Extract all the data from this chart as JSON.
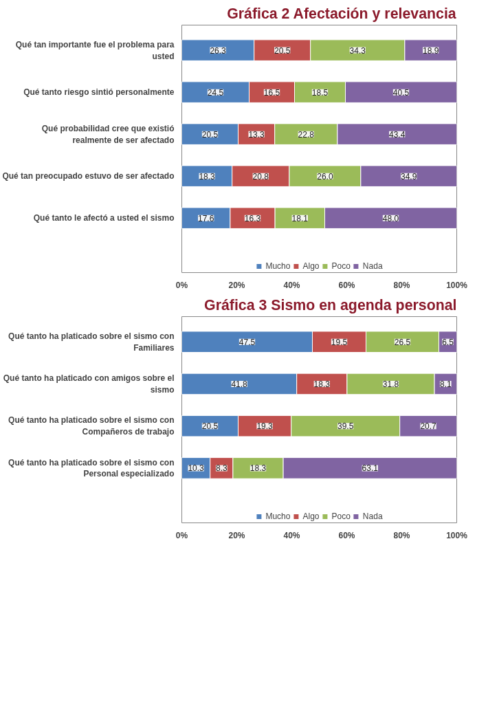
{
  "chart_data": [
    {
      "type": "bar",
      "orientation": "horizontal",
      "stacked": true,
      "title": "Gráfica 2 Afectación y relevancia",
      "categories": [
        "Qué tan importante fue el problema para usted",
        "Qué tanto riesgo sintió personalmente",
        "Qué probabilidad cree que existió realmente de ser afectado",
        "Qué tan preocupado estuvo de ser afectado",
        "Qué tanto le afectó a usted el sismo"
      ],
      "series": [
        {
          "name": "Mucho",
          "color": "#4f81bd",
          "values": [
            26.3,
            24.5,
            20.5,
            18.3,
            17.6
          ],
          "value_labels": [
            "26.3",
            "24.5",
            "20.5",
            "18.3",
            "17.6"
          ]
        },
        {
          "name": "Algo",
          "color": "#c0504d",
          "values": [
            20.5,
            16.5,
            13.3,
            20.8,
            16.3
          ],
          "value_labels": [
            "20.5",
            "16.5",
            "13.3",
            "20.8",
            "16.3"
          ]
        },
        {
          "name": "Poco",
          "color": "#9bbb59",
          "values": [
            34.3,
            18.5,
            22.8,
            26.0,
            18.1
          ],
          "value_labels": [
            "34.3",
            "18.5",
            "22.8",
            "26.0",
            "18.1"
          ]
        },
        {
          "name": "Nada",
          "color": "#8064a2",
          "values": [
            18.9,
            40.5,
            43.4,
            34.9,
            48.0
          ],
          "value_labels": [
            "18.9",
            "40.5",
            "43.4",
            "34.9",
            "48.0"
          ]
        }
      ],
      "xlim": [
        0,
        100
      ],
      "xticks": [
        {
          "value": 0,
          "label": "0%"
        },
        {
          "value": 20,
          "label": "20%"
        },
        {
          "value": 40,
          "label": "40%"
        },
        {
          "value": 60,
          "label": "60%"
        },
        {
          "value": 80,
          "label": "80%"
        },
        {
          "value": 100,
          "label": "100%"
        }
      ],
      "legend": "bottom"
    },
    {
      "type": "bar",
      "orientation": "horizontal",
      "stacked": true,
      "title": "Gráfica 3 Sismo en agenda personal",
      "categories": [
        "Qué tanto ha platicado sobre el sismo con Familiares",
        "Qué tanto ha platicado con amigos sobre el sismo",
        "Qué tanto ha platicado sobre el sismo con Compañeros de trabajo",
        "Qué tanto ha platicado sobre el sismo con Personal especializado"
      ],
      "series": [
        {
          "name": "Mucho",
          "color": "#4f81bd",
          "values": [
            47.5,
            41.8,
            20.5,
            10.3
          ],
          "value_labels": [
            "47.5",
            "41.8",
            "20.5",
            "10.3"
          ]
        },
        {
          "name": "Algo",
          "color": "#c0504d",
          "values": [
            19.5,
            18.3,
            19.3,
            8.3
          ],
          "value_labels": [
            "19.5",
            "18.3",
            "19.3",
            "8.3"
          ]
        },
        {
          "name": "Poco",
          "color": "#9bbb59",
          "values": [
            26.5,
            31.8,
            39.5,
            18.3
          ],
          "value_labels": [
            "26.5",
            "31.8",
            "39.5",
            "18.3"
          ]
        },
        {
          "name": "Nada",
          "color": "#8064a2",
          "values": [
            6.5,
            8.1,
            20.7,
            63.1
          ],
          "value_labels": [
            "6.5",
            "8.1",
            "20.7",
            "63.1"
          ]
        }
      ],
      "xlim": [
        0,
        100
      ],
      "xticks": [
        {
          "value": 0,
          "label": "0%"
        },
        {
          "value": 20,
          "label": "20%"
        },
        {
          "value": 40,
          "label": "40%"
        },
        {
          "value": 60,
          "label": "60%"
        },
        {
          "value": 80,
          "label": "80%"
        },
        {
          "value": 100,
          "label": "100%"
        }
      ],
      "legend": "bottom"
    }
  ]
}
